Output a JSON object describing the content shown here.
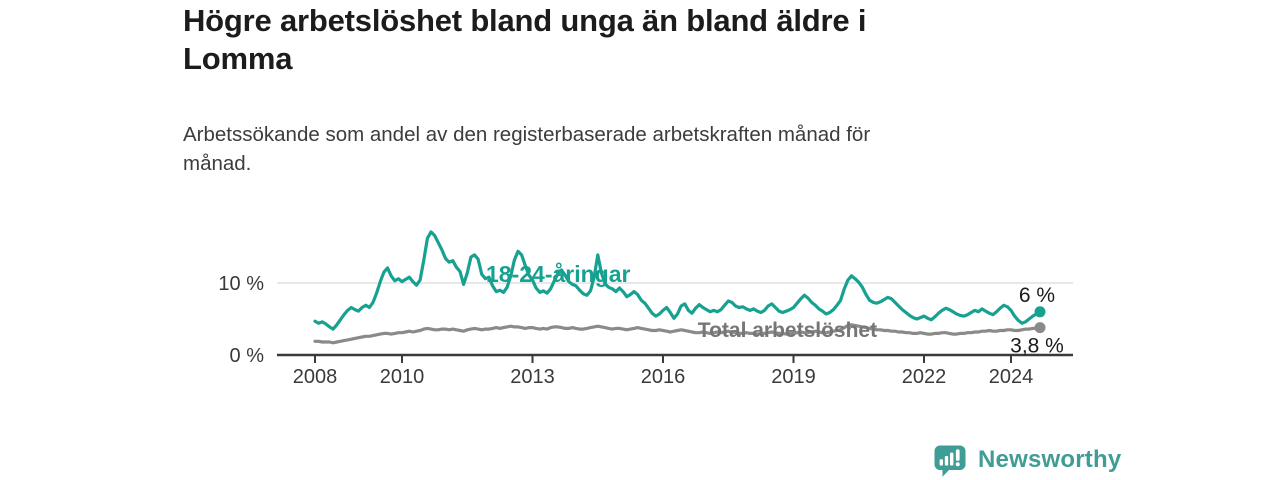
{
  "header": {
    "title_lines": [
      "Högre arbetslöshet bland unga än bland äldre i",
      "Lomma"
    ],
    "subtitle_lines": [
      "Arbetssökande som andel av den registerbaserade arbetskraften månad för",
      "månad."
    ]
  },
  "footer": {
    "brand": "Newsworthy"
  },
  "colors": {
    "axis": "#3a3a3a",
    "grid": "#dbdbdb",
    "value_label": "#1a1a1a",
    "youth_teal": "#17a191",
    "total_gray": "#8a8a8a",
    "brand_teal": "#3f9d96"
  },
  "chart_data": {
    "type": "line",
    "title": "Högre arbetslöshet bland unga än bland äldre i Lomma",
    "subtitle": "Arbetssökande som andel av den registerbaserade arbetskraften månad för månad.",
    "x_unit": "month",
    "x_start": "2008-01",
    "x_end": "2024-09",
    "x_ticks": [
      2008,
      2010,
      2013,
      2016,
      2019,
      2022,
      2024
    ],
    "y_ticks": [
      {
        "value": 0,
        "label": "0 %"
      },
      {
        "value": 10,
        "label": "10 %"
      }
    ],
    "ylim": [
      0,
      18
    ],
    "grid": "horizontal line at 10% only",
    "legend": "inline labels on lines, end-value labels at last point",
    "series": [
      {
        "name": "18-24-åringar",
        "color": "#17a191",
        "label_color": "#17a191",
        "end_value": 6.0,
        "end_value_label": "6 %",
        "label_anchor": {
          "year": 2011.93,
          "value": 10.15
        },
        "values": [
          4.7,
          4.4,
          4.6,
          4.3,
          3.9,
          3.6,
          4.2,
          4.9,
          5.6,
          6.2,
          6.6,
          6.3,
          6.1,
          6.6,
          6.9,
          6.6,
          7.3,
          8.6,
          10.2,
          11.5,
          12.1,
          11.0,
          10.3,
          10.6,
          10.2,
          10.5,
          10.8,
          10.2,
          9.7,
          10.4,
          13.2,
          16.2,
          17.1,
          16.6,
          15.6,
          14.6,
          13.4,
          12.9,
          13.1,
          12.2,
          11.6,
          9.8,
          11.4,
          13.6,
          13.9,
          13.3,
          11.2,
          10.6,
          10.8,
          9.6,
          8.8,
          9.0,
          8.7,
          9.4,
          11.0,
          13.2,
          14.4,
          13.9,
          12.4,
          11.1,
          10.4,
          9.3,
          8.7,
          8.9,
          8.6,
          9.2,
          10.3,
          11.3,
          11.8,
          11.1,
          10.2,
          9.8,
          9.6,
          9.0,
          8.5,
          8.3,
          8.9,
          10.8,
          13.9,
          11.4,
          9.9,
          9.4,
          9.2,
          8.8,
          9.3,
          8.8,
          8.1,
          8.4,
          8.8,
          8.4,
          7.6,
          7.2,
          6.5,
          5.8,
          5.4,
          5.7,
          6.2,
          6.6,
          5.9,
          5.1,
          5.7,
          6.8,
          7.1,
          6.2,
          5.8,
          6.5,
          7.0,
          6.6,
          6.3,
          6.0,
          6.2,
          6.0,
          6.3,
          6.9,
          7.5,
          7.3,
          6.8,
          6.6,
          6.7,
          6.4,
          6.2,
          6.4,
          6.1,
          5.9,
          6.2,
          6.8,
          7.1,
          6.6,
          6.1,
          5.9,
          6.1,
          6.3,
          6.6,
          7.2,
          7.8,
          8.3,
          7.9,
          7.3,
          6.9,
          6.4,
          6.1,
          5.7,
          5.9,
          6.3,
          6.9,
          7.6,
          9.2,
          10.4,
          11.0,
          10.6,
          10.1,
          9.4,
          8.4,
          7.6,
          7.3,
          7.2,
          7.4,
          7.7,
          8.0,
          7.8,
          7.3,
          6.8,
          6.3,
          5.9,
          5.5,
          5.2,
          5.0,
          5.2,
          5.4,
          5.1,
          4.9,
          5.3,
          5.8,
          6.2,
          6.5,
          6.3,
          6.0,
          5.7,
          5.5,
          5.4,
          5.6,
          5.9,
          6.2,
          6.0,
          6.4,
          6.1,
          5.8,
          5.6,
          6.0,
          6.5,
          6.9,
          6.7,
          6.2,
          5.4,
          4.8,
          4.4,
          4.6,
          5.0,
          5.4,
          5.7,
          6.0
        ]
      },
      {
        "name": "Total arbetslöshet",
        "color": "#8a8a8a",
        "label_color": "#767676",
        "end_value": 3.8,
        "end_value_label": "3,8 %",
        "label_anchor": {
          "year": 2016.8,
          "value": 2.5
        },
        "values": [
          1.9,
          1.9,
          1.8,
          1.8,
          1.8,
          1.7,
          1.8,
          1.9,
          2.0,
          2.1,
          2.2,
          2.3,
          2.4,
          2.5,
          2.6,
          2.6,
          2.7,
          2.8,
          2.9,
          3.0,
          3.0,
          2.9,
          3.0,
          3.1,
          3.1,
          3.2,
          3.3,
          3.2,
          3.3,
          3.4,
          3.6,
          3.7,
          3.6,
          3.5,
          3.5,
          3.6,
          3.6,
          3.5,
          3.6,
          3.5,
          3.4,
          3.3,
          3.5,
          3.6,
          3.7,
          3.6,
          3.5,
          3.6,
          3.6,
          3.7,
          3.8,
          3.7,
          3.8,
          3.9,
          4.0,
          3.9,
          3.9,
          3.8,
          3.7,
          3.8,
          3.8,
          3.7,
          3.6,
          3.7,
          3.6,
          3.8,
          3.9,
          3.9,
          3.8,
          3.7,
          3.7,
          3.8,
          3.7,
          3.6,
          3.6,
          3.7,
          3.8,
          3.9,
          4.0,
          3.9,
          3.8,
          3.7,
          3.6,
          3.7,
          3.7,
          3.6,
          3.5,
          3.6,
          3.7,
          3.8,
          3.7,
          3.6,
          3.5,
          3.4,
          3.4,
          3.5,
          3.4,
          3.3,
          3.2,
          3.3,
          3.4,
          3.5,
          3.4,
          3.3,
          3.2,
          3.1,
          3.1,
          3.2,
          3.1,
          3.0,
          3.1,
          3.2,
          3.1,
          3.2,
          3.3,
          3.2,
          3.1,
          3.0,
          3.0,
          3.1,
          3.0,
          3.0,
          2.9,
          3.0,
          3.0,
          3.1,
          3.2,
          3.1,
          3.0,
          3.0,
          2.9,
          3.0,
          3.0,
          3.1,
          3.2,
          3.1,
          3.1,
          3.2,
          3.3,
          3.2,
          3.1,
          3.1,
          3.2,
          3.3,
          3.4,
          3.5,
          3.8,
          4.1,
          4.2,
          4.1,
          4.0,
          3.9,
          3.8,
          3.7,
          3.6,
          3.5,
          3.5,
          3.4,
          3.4,
          3.3,
          3.3,
          3.2,
          3.2,
          3.1,
          3.1,
          3.0,
          3.0,
          3.1,
          3.0,
          2.9,
          2.9,
          3.0,
          3.0,
          3.1,
          3.1,
          3.0,
          2.9,
          2.9,
          3.0,
          3.0,
          3.1,
          3.1,
          3.2,
          3.2,
          3.3,
          3.3,
          3.4,
          3.3,
          3.3,
          3.4,
          3.4,
          3.5,
          3.5,
          3.4,
          3.4,
          3.5,
          3.6,
          3.6,
          3.7,
          3.7,
          3.8
        ]
      }
    ]
  }
}
